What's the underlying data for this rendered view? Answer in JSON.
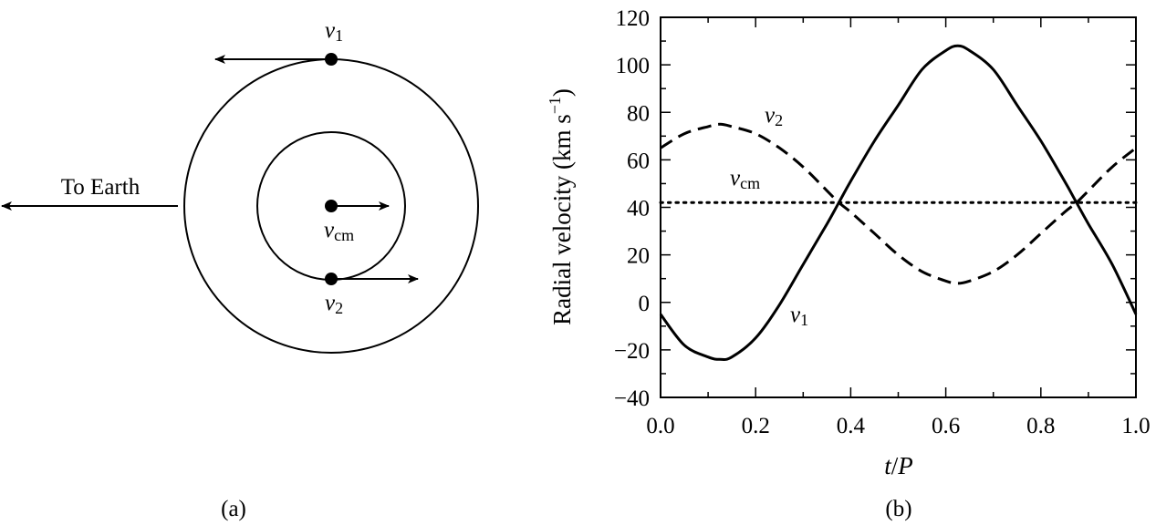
{
  "panel_a": {
    "caption": "(a)",
    "to_earth_label": "To Earth",
    "v1_label": {
      "base": "v",
      "sub": "1"
    },
    "v2_label": {
      "base": "v",
      "sub": "2"
    },
    "vcm_label": {
      "base": "v",
      "sub": "cm"
    }
  },
  "panel_b": {
    "caption": "(b)",
    "ylabel_main": "Radial velocity (km s",
    "ylabel_sup": "−1",
    "ylabel_close": ")",
    "xlabel_t": "t",
    "xlabel_slash": "/",
    "xlabel_p": "P",
    "curve_labels": {
      "v1": {
        "base": "v",
        "sub": "1"
      },
      "v2": {
        "base": "v",
        "sub": "2"
      },
      "vcm": {
        "base": "v",
        "sub": "cm"
      }
    }
  },
  "chart_data": {
    "type": "line",
    "xlabel": "t/P",
    "ylabel": "Radial velocity (km s−1)",
    "xlim": [
      0.0,
      1.0
    ],
    "ylim": [
      -40,
      120
    ],
    "xticks": [
      0.0,
      0.2,
      0.4,
      0.6,
      0.8,
      1.0
    ],
    "xtick_labels": [
      "0.0",
      "0.2",
      "0.4",
      "0.6",
      "0.8",
      "1.0"
    ],
    "yticks": [
      -40,
      -20,
      0,
      20,
      40,
      60,
      80,
      100,
      120
    ],
    "ytick_labels": [
      "−40",
      "−20",
      "0",
      "20",
      "40",
      "60",
      "80",
      "100",
      "120"
    ],
    "grid": false,
    "series": [
      {
        "name": "v1",
        "style": "solid",
        "x": [
          0.0,
          0.05,
          0.1,
          0.125,
          0.15,
          0.2,
          0.25,
          0.3,
          0.35,
          0.375,
          0.4,
          0.45,
          0.5,
          0.55,
          0.6,
          0.625,
          0.65,
          0.7,
          0.75,
          0.8,
          0.85,
          0.875,
          0.9,
          0.95,
          1.0
        ],
        "values": [
          -5,
          -18,
          -23,
          -24,
          -23,
          -15,
          -1,
          16,
          33,
          42,
          51,
          68,
          83,
          98,
          106,
          108,
          106,
          98,
          83,
          68,
          51,
          42,
          33,
          16,
          -5
        ]
      },
      {
        "name": "v2",
        "style": "dashed",
        "x": [
          0.0,
          0.05,
          0.1,
          0.125,
          0.15,
          0.2,
          0.25,
          0.3,
          0.35,
          0.375,
          0.4,
          0.45,
          0.5,
          0.55,
          0.6,
          0.625,
          0.65,
          0.7,
          0.75,
          0.8,
          0.85,
          0.875,
          0.9,
          0.95,
          1.0
        ],
        "values": [
          65,
          71,
          74,
          75,
          74,
          71,
          65,
          57,
          47,
          42,
          38,
          29,
          20,
          13,
          9,
          8,
          9,
          13,
          20,
          29,
          38,
          42,
          47,
          57,
          65
        ]
      },
      {
        "name": "vcm",
        "style": "dotted",
        "x": [
          0.0,
          1.0
        ],
        "values": [
          42,
          42
        ]
      }
    ]
  }
}
